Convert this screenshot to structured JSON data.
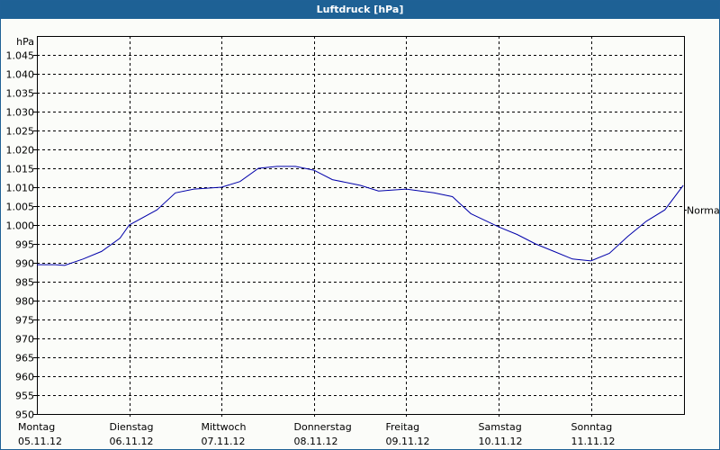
{
  "window": {
    "title": "Luftdruck [hPa]"
  },
  "colors": {
    "titlebar": "#1e6195",
    "line": "#0000aa",
    "grid": "#000000",
    "background": "#fbfcf9"
  },
  "chart_data": {
    "type": "line",
    "title": "Luftdruck [hPa]",
    "ylabel": "hPa",
    "xlabel": "",
    "ylim": [
      950,
      1050
    ],
    "grid": true,
    "yticks": [
      "950",
      "955",
      "960",
      "965",
      "970",
      "975",
      "980",
      "985",
      "990",
      "995",
      "1.000",
      "1.005",
      "1.010",
      "1.015",
      "1.020",
      "1.025",
      "1.030",
      "1.035",
      "1.040",
      "1.045"
    ],
    "categories": [
      {
        "day": "Montag",
        "date": "05.11.12"
      },
      {
        "day": "Dienstag",
        "date": "06.11.12"
      },
      {
        "day": "Mittwoch",
        "date": "07.11.12"
      },
      {
        "day": "Donnerstag",
        "date": "08.11.12"
      },
      {
        "day": "Freitag",
        "date": "09.11.12"
      },
      {
        "day": "Samstag",
        "date": "10.11.12"
      },
      {
        "day": "Sonntag",
        "date": "11.11.12"
      }
    ],
    "annotations": [
      {
        "label": "Normal",
        "value": 1004
      }
    ],
    "series": [
      {
        "name": "Luftdruck",
        "x_days": [
          0,
          0.2,
          0.3,
          0.5,
          0.7,
          0.9,
          1.0,
          1.3,
          1.5,
          1.7,
          2.0,
          2.2,
          2.4,
          2.6,
          2.8,
          3.0,
          3.2,
          3.5,
          3.7,
          4.0,
          4.3,
          4.5,
          4.7,
          5.0,
          5.2,
          5.4,
          5.6,
          5.8,
          6.0,
          6.2,
          6.4,
          6.6,
          6.8,
          7.0
        ],
        "values": [
          989.5,
          989.5,
          989.3,
          991,
          993,
          996.5,
          1000,
          1004,
          1008.5,
          1009.5,
          1010,
          1011.5,
          1015,
          1015.5,
          1015.5,
          1014.5,
          1012,
          1010.5,
          1009,
          1009.5,
          1008.5,
          1007.5,
          1003,
          999.5,
          997.5,
          995,
          993,
          991,
          990.5,
          992.5,
          997,
          1001,
          1004,
          1010.5
        ]
      }
    ]
  }
}
